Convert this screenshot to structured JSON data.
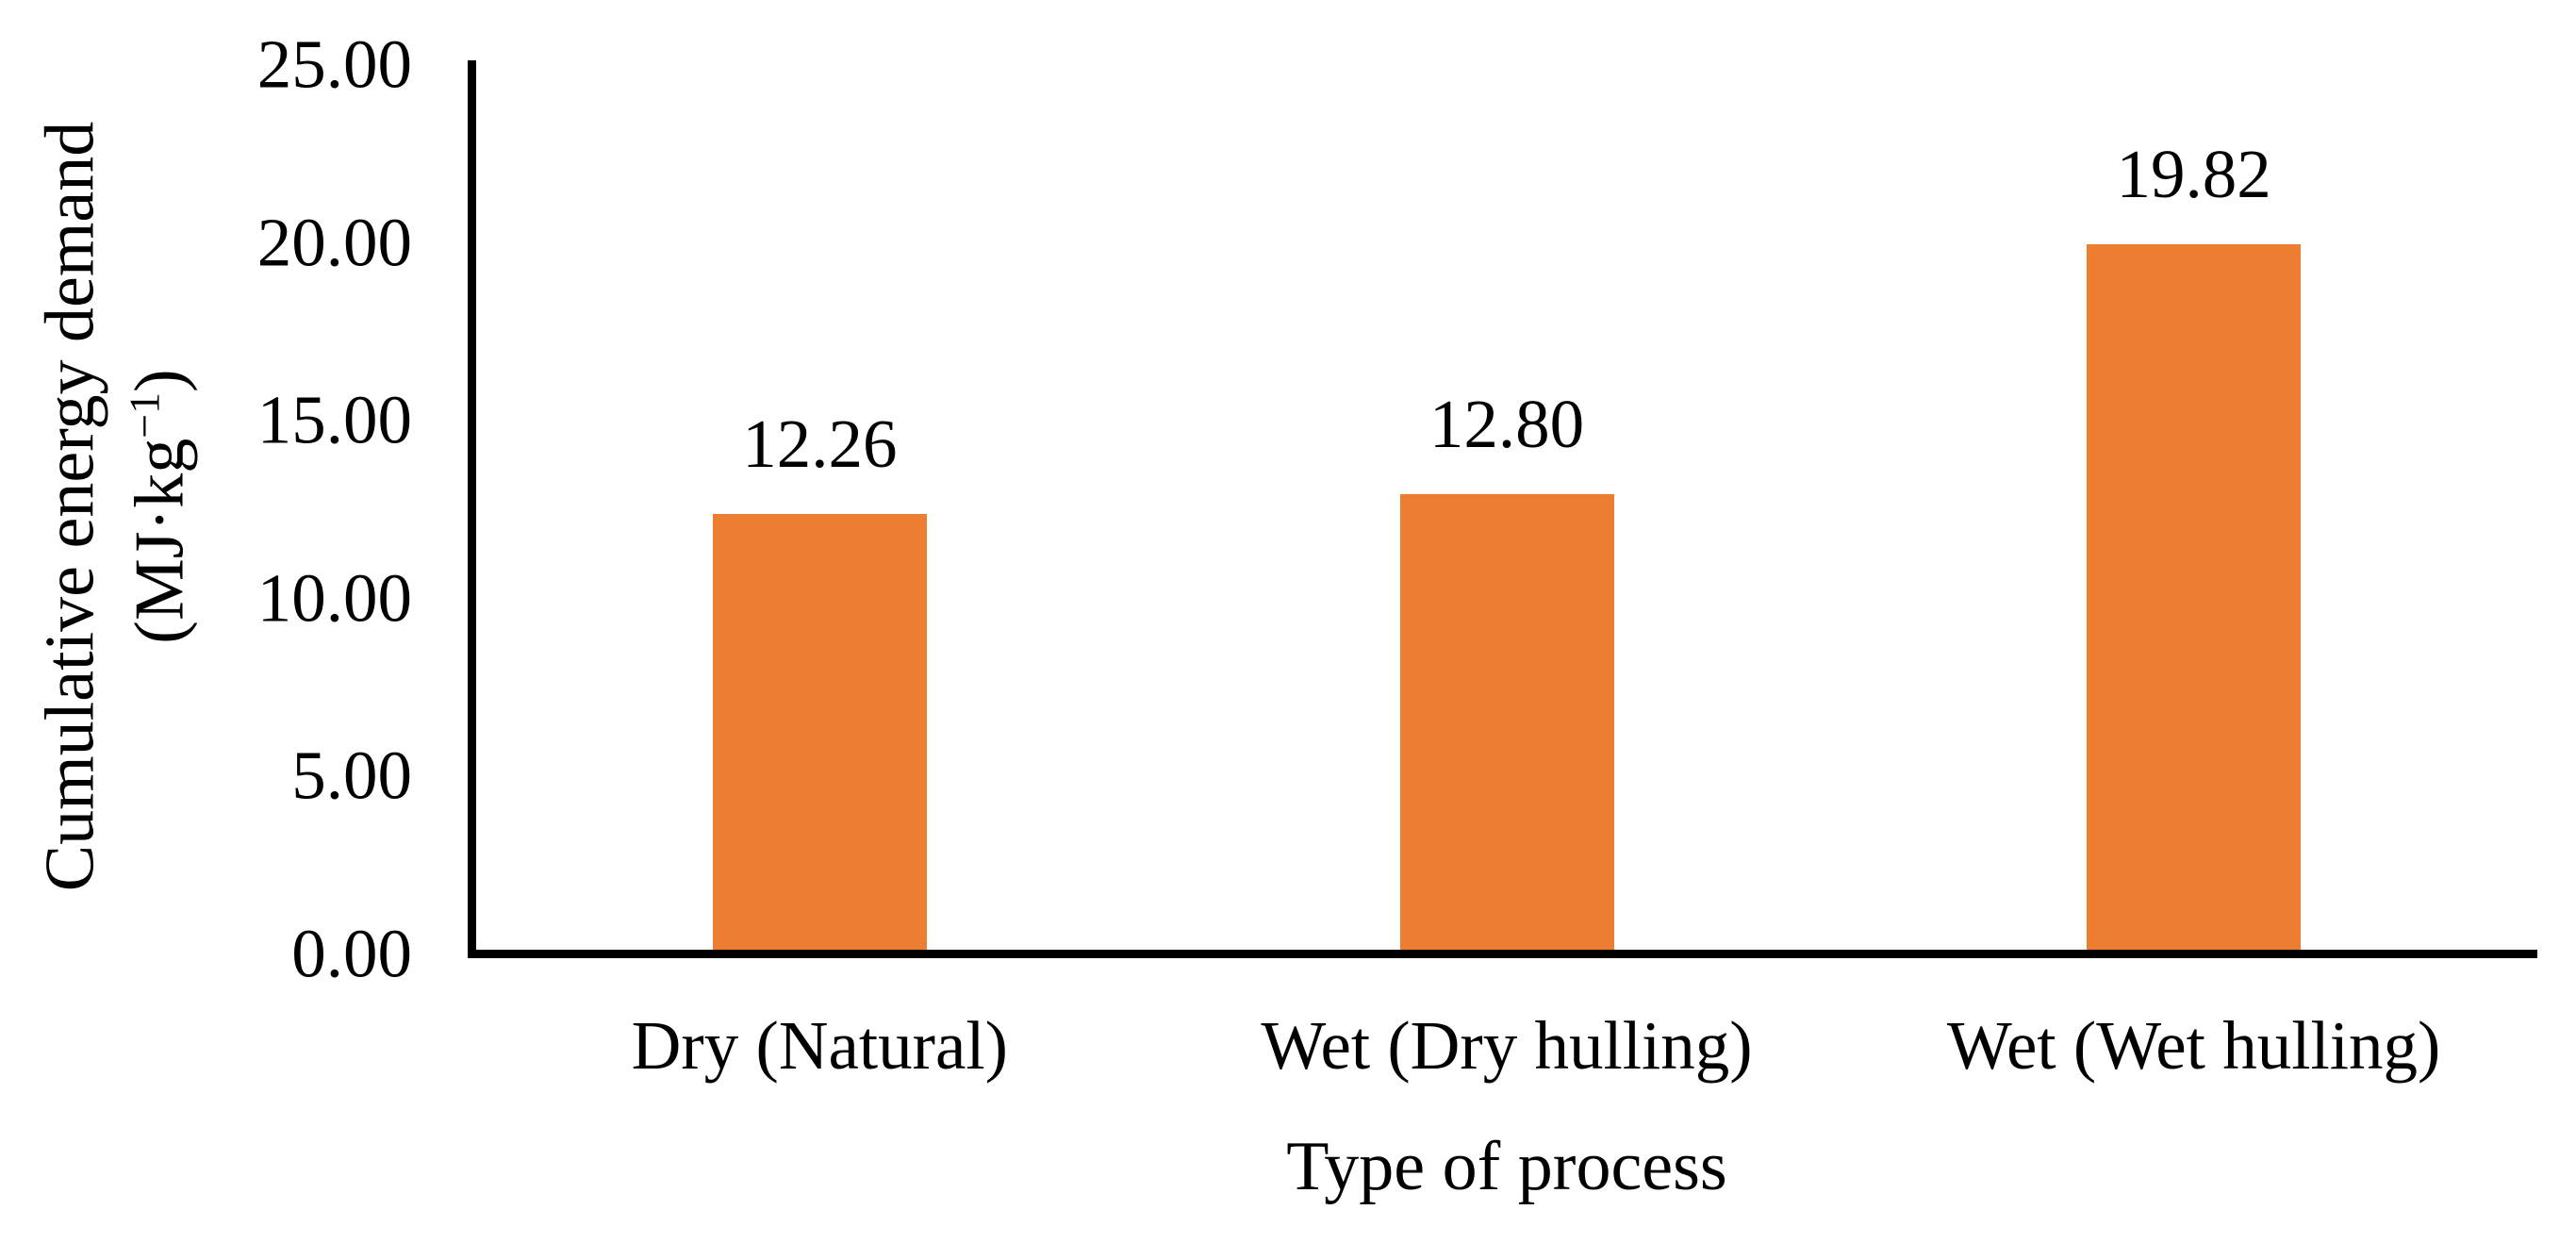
{
  "chart_data": {
    "type": "bar",
    "title": "",
    "categories": [
      "Dry (Natural)",
      "Wet (Dry hulling)",
      "Wet (Wet hulling)"
    ],
    "values": [
      12.26,
      12.8,
      19.82
    ],
    "data_labels": [
      "12.26",
      "12.80",
      "19.82"
    ],
    "xlabel": "Type of process",
    "ylabel": {
      "line1": "Cumulative energy demand",
      "unit_prefix": "(MJ·kg",
      "unit_superscript": "−1",
      "unit_suffix": ")"
    },
    "ylim": [
      0,
      25
    ],
    "yticks": [
      {
        "value": 0,
        "label": "0.00"
      },
      {
        "value": 5,
        "label": "5.00"
      },
      {
        "value": 10,
        "label": "10.00"
      },
      {
        "value": 15,
        "label": "15.00"
      },
      {
        "value": 20,
        "label": "20.00"
      },
      {
        "value": 25,
        "label": "25.00"
      }
    ],
    "bar_color": "#ED7D31",
    "axis_color": "#000000",
    "text_color": "#000000",
    "grid": "off",
    "legend": "none"
  }
}
